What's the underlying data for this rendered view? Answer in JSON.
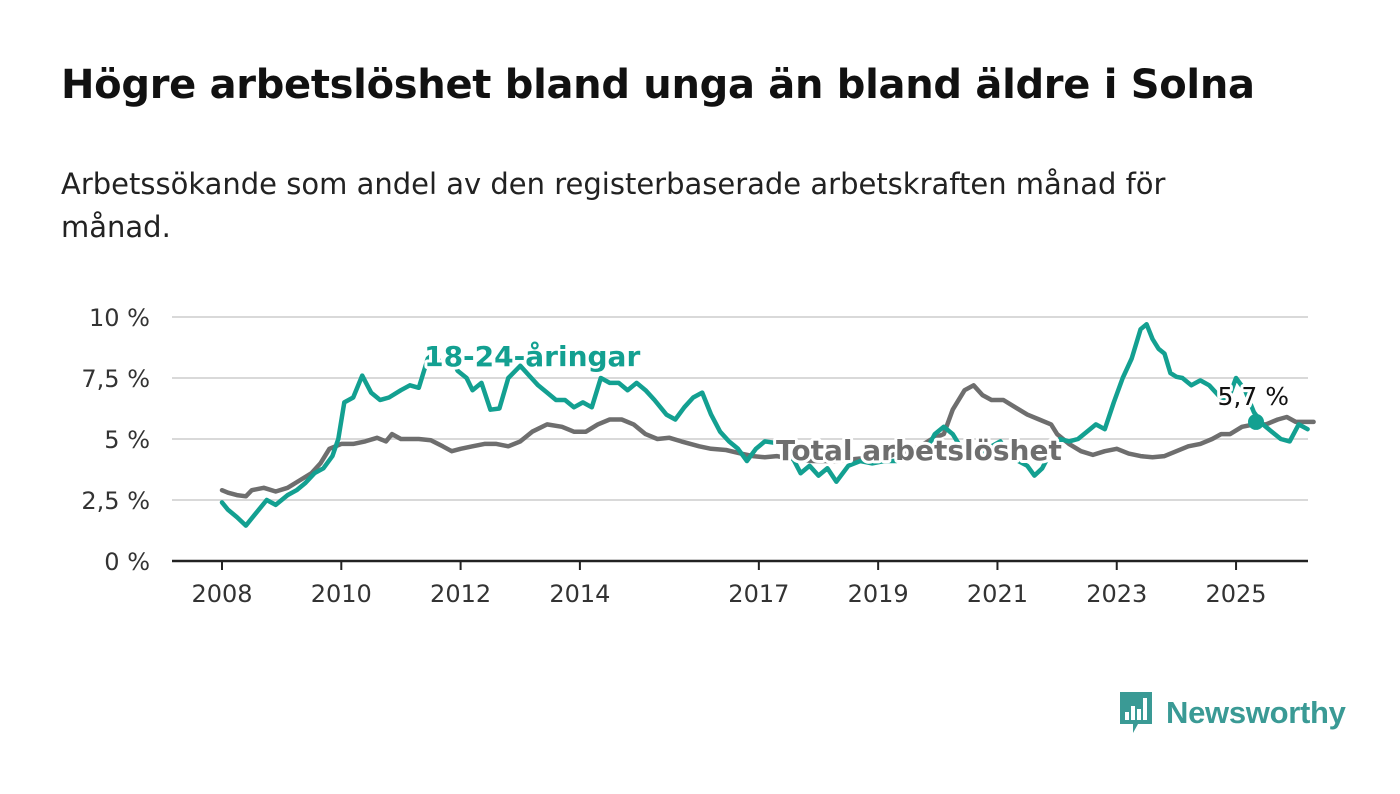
{
  "title": "Högre arbetslöshet bland unga än bland äldre i Solna",
  "subtitle": "Arbetssökande som andel av den registerbaserade arbetskraften månad för månad.",
  "brand": {
    "name": "Newsworthy",
    "color": "#3a9a95"
  },
  "chart_data": {
    "type": "line",
    "ylim": [
      0,
      10
    ],
    "xlim": [
      2007.2,
      2026.2
    ],
    "grid": true,
    "y_ticks": [
      {
        "value": 0,
        "label": "0 %"
      },
      {
        "value": 2.5,
        "label": "2,5 %"
      },
      {
        "value": 5,
        "label": "5 %"
      },
      {
        "value": 7.5,
        "label": "7,5 %"
      },
      {
        "value": 10,
        "label": "10 %"
      }
    ],
    "x_ticks": [
      {
        "value": 2008,
        "label": "2008"
      },
      {
        "value": 2010,
        "label": "2010"
      },
      {
        "value": 2012,
        "label": "2012"
      },
      {
        "value": 2014,
        "label": "2014"
      },
      {
        "value": 2017,
        "label": "2017"
      },
      {
        "value": 2019,
        "label": "2019"
      },
      {
        "value": 2021,
        "label": "2021"
      },
      {
        "value": 2023,
        "label": "2023"
      },
      {
        "value": 2025,
        "label": "2025"
      }
    ],
    "series": [
      {
        "name": "Total arbetslöshet",
        "color": "#6e6e6e",
        "label_at": 2018.35,
        "points": [
          [
            2008.0,
            2.9
          ],
          [
            2008.1,
            2.8
          ],
          [
            2008.25,
            2.7
          ],
          [
            2008.4,
            2.65
          ],
          [
            2008.5,
            2.9
          ],
          [
            2008.7,
            3.0
          ],
          [
            2008.9,
            2.85
          ],
          [
            2009.1,
            3.0
          ],
          [
            2009.3,
            3.3
          ],
          [
            2009.5,
            3.6
          ],
          [
            2009.65,
            4.0
          ],
          [
            2009.8,
            4.6
          ],
          [
            2010.0,
            4.8
          ],
          [
            2010.2,
            4.8
          ],
          [
            2010.4,
            4.9
          ],
          [
            2010.6,
            5.05
          ],
          [
            2010.75,
            4.9
          ],
          [
            2010.85,
            5.2
          ],
          [
            2011.0,
            5.0
          ],
          [
            2011.3,
            5.0
          ],
          [
            2011.5,
            4.95
          ],
          [
            2011.7,
            4.7
          ],
          [
            2011.85,
            4.5
          ],
          [
            2012.0,
            4.6
          ],
          [
            2012.2,
            4.7
          ],
          [
            2012.4,
            4.8
          ],
          [
            2012.6,
            4.8
          ],
          [
            2012.8,
            4.7
          ],
          [
            2013.0,
            4.9
          ],
          [
            2013.2,
            5.3
          ],
          [
            2013.45,
            5.6
          ],
          [
            2013.7,
            5.5
          ],
          [
            2013.9,
            5.3
          ],
          [
            2014.1,
            5.3
          ],
          [
            2014.3,
            5.6
          ],
          [
            2014.5,
            5.8
          ],
          [
            2014.7,
            5.8
          ],
          [
            2014.9,
            5.6
          ],
          [
            2015.1,
            5.2
          ],
          [
            2015.3,
            5.0
          ],
          [
            2015.5,
            5.05
          ],
          [
            2015.7,
            4.9
          ],
          [
            2016.0,
            4.7
          ],
          [
            2016.2,
            4.6
          ],
          [
            2016.45,
            4.55
          ],
          [
            2016.7,
            4.4
          ],
          [
            2016.9,
            4.3
          ],
          [
            2017.1,
            4.25
          ],
          [
            2017.3,
            4.3
          ],
          [
            2017.5,
            4.2
          ],
          [
            2017.7,
            4.15
          ],
          [
            2017.9,
            4.1
          ],
          [
            2018.1,
            4.1
          ],
          [
            2018.3,
            4.1
          ],
          [
            2018.5,
            4.15
          ],
          [
            2018.7,
            4.2
          ],
          [
            2018.9,
            4.3
          ],
          [
            2019.1,
            4.2
          ],
          [
            2019.3,
            4.4
          ],
          [
            2019.5,
            4.5
          ],
          [
            2019.7,
            4.7
          ],
          [
            2019.9,
            5.0
          ],
          [
            2020.1,
            5.2
          ],
          [
            2020.25,
            6.2
          ],
          [
            2020.45,
            7.0
          ],
          [
            2020.6,
            7.2
          ],
          [
            2020.75,
            6.8
          ],
          [
            2020.9,
            6.6
          ],
          [
            2021.1,
            6.6
          ],
          [
            2021.3,
            6.3
          ],
          [
            2021.5,
            6.0
          ],
          [
            2021.7,
            5.8
          ],
          [
            2021.9,
            5.6
          ],
          [
            2022.0,
            5.2
          ],
          [
            2022.2,
            4.8
          ],
          [
            2022.4,
            4.5
          ],
          [
            2022.6,
            4.35
          ],
          [
            2022.8,
            4.5
          ],
          [
            2023.0,
            4.6
          ],
          [
            2023.2,
            4.4
          ],
          [
            2023.4,
            4.3
          ],
          [
            2023.6,
            4.25
          ],
          [
            2023.8,
            4.3
          ],
          [
            2024.0,
            4.5
          ],
          [
            2024.2,
            4.7
          ],
          [
            2024.4,
            4.8
          ],
          [
            2024.6,
            5.0
          ],
          [
            2024.75,
            5.2
          ],
          [
            2024.9,
            5.2
          ],
          [
            2025.1,
            5.5
          ],
          [
            2025.3,
            5.6
          ],
          [
            2025.5,
            5.6
          ],
          [
            2025.7,
            5.8
          ],
          [
            2025.85,
            5.9
          ],
          [
            2026.0,
            5.7
          ],
          [
            2026.3,
            5.7
          ]
        ]
      },
      {
        "name": "18-24-åringar",
        "color": "#13a091",
        "label_at": 2013.2,
        "points": [
          [
            2008.0,
            2.4
          ],
          [
            2008.1,
            2.1
          ],
          [
            2008.25,
            1.8
          ],
          [
            2008.4,
            1.45
          ],
          [
            2008.55,
            1.9
          ],
          [
            2008.75,
            2.5
          ],
          [
            2008.9,
            2.3
          ],
          [
            2009.1,
            2.7
          ],
          [
            2009.25,
            2.9
          ],
          [
            2009.4,
            3.2
          ],
          [
            2009.55,
            3.6
          ],
          [
            2009.7,
            3.8
          ],
          [
            2009.85,
            4.3
          ],
          [
            2009.95,
            5.0
          ],
          [
            2010.05,
            6.5
          ],
          [
            2010.2,
            6.7
          ],
          [
            2010.35,
            7.6
          ],
          [
            2010.5,
            6.9
          ],
          [
            2010.65,
            6.6
          ],
          [
            2010.8,
            6.7
          ],
          [
            2011.0,
            7.0
          ],
          [
            2011.15,
            7.2
          ],
          [
            2011.3,
            7.1
          ],
          [
            2011.45,
            8.3
          ],
          [
            2011.55,
            8.5
          ],
          [
            2011.7,
            8.0
          ],
          [
            2011.8,
            8.6
          ],
          [
            2011.95,
            7.8
          ],
          [
            2012.1,
            7.5
          ],
          [
            2012.2,
            7.0
          ],
          [
            2012.35,
            7.3
          ],
          [
            2012.5,
            6.2
          ],
          [
            2012.65,
            6.25
          ],
          [
            2012.8,
            7.5
          ],
          [
            2013.0,
            8.0
          ],
          [
            2013.15,
            7.6
          ],
          [
            2013.3,
            7.2
          ],
          [
            2013.45,
            6.9
          ],
          [
            2013.6,
            6.6
          ],
          [
            2013.75,
            6.6
          ],
          [
            2013.9,
            6.3
          ],
          [
            2014.05,
            6.5
          ],
          [
            2014.2,
            6.3
          ],
          [
            2014.35,
            7.5
          ],
          [
            2014.5,
            7.3
          ],
          [
            2014.65,
            7.3
          ],
          [
            2014.8,
            7.0
          ],
          [
            2014.95,
            7.3
          ],
          [
            2015.1,
            7.0
          ],
          [
            2015.25,
            6.6
          ],
          [
            2015.45,
            6.0
          ],
          [
            2015.6,
            5.8
          ],
          [
            2015.75,
            6.3
          ],
          [
            2015.9,
            6.7
          ],
          [
            2016.05,
            6.9
          ],
          [
            2016.2,
            6.0
          ],
          [
            2016.35,
            5.3
          ],
          [
            2016.5,
            4.9
          ],
          [
            2016.65,
            4.6
          ],
          [
            2016.8,
            4.1
          ],
          [
            2016.95,
            4.6
          ],
          [
            2017.1,
            4.9
          ],
          [
            2017.25,
            4.85
          ],
          [
            2017.4,
            4.8
          ],
          [
            2017.55,
            4.3
          ],
          [
            2017.7,
            3.6
          ],
          [
            2017.85,
            3.9
          ],
          [
            2018.0,
            3.5
          ],
          [
            2018.15,
            3.8
          ],
          [
            2018.3,
            3.25
          ],
          [
            2018.5,
            3.9
          ],
          [
            2018.7,
            4.1
          ],
          [
            2018.9,
            4.0
          ],
          [
            2019.1,
            4.1
          ],
          [
            2019.3,
            4.1
          ],
          [
            2019.5,
            4.3
          ],
          [
            2019.65,
            4.5
          ],
          [
            2019.8,
            4.5
          ],
          [
            2019.95,
            5.2
          ],
          [
            2020.1,
            5.5
          ],
          [
            2020.25,
            5.2
          ],
          [
            2020.45,
            4.4
          ],
          [
            2020.6,
            4.3
          ],
          [
            2020.75,
            4.5
          ],
          [
            2020.9,
            4.7
          ],
          [
            2021.05,
            4.9
          ],
          [
            2021.2,
            4.3
          ],
          [
            2021.35,
            4.1
          ],
          [
            2021.5,
            3.9
          ],
          [
            2021.62,
            3.5
          ],
          [
            2021.75,
            3.8
          ],
          [
            2021.9,
            4.5
          ],
          [
            2022.05,
            5.0
          ],
          [
            2022.2,
            4.9
          ],
          [
            2022.35,
            5.0
          ],
          [
            2022.5,
            5.3
          ],
          [
            2022.65,
            5.6
          ],
          [
            2022.8,
            5.4
          ],
          [
            2022.95,
            6.5
          ],
          [
            2023.1,
            7.5
          ],
          [
            2023.25,
            8.3
          ],
          [
            2023.4,
            9.5
          ],
          [
            2023.5,
            9.7
          ],
          [
            2023.6,
            9.1
          ],
          [
            2023.7,
            8.7
          ],
          [
            2023.8,
            8.5
          ],
          [
            2023.9,
            7.7
          ],
          [
            2024.0,
            7.55
          ],
          [
            2024.1,
            7.5
          ],
          [
            2024.25,
            7.2
          ],
          [
            2024.4,
            7.4
          ],
          [
            2024.55,
            7.2
          ],
          [
            2024.7,
            6.8
          ],
          [
            2024.85,
            6.5
          ],
          [
            2025.0,
            7.5
          ],
          [
            2025.15,
            7.0
          ],
          [
            2025.3,
            6.1
          ],
          [
            2025.45,
            5.6
          ],
          [
            2025.6,
            5.3
          ],
          [
            2025.75,
            5.0
          ],
          [
            2025.9,
            4.9
          ],
          [
            2026.05,
            5.6
          ],
          [
            2026.2,
            5.4
          ]
        ]
      }
    ]
  },
  "last_point": {
    "label": "5,7 %",
    "x": 2025.35,
    "y": 5.7,
    "color": "#13a091"
  }
}
